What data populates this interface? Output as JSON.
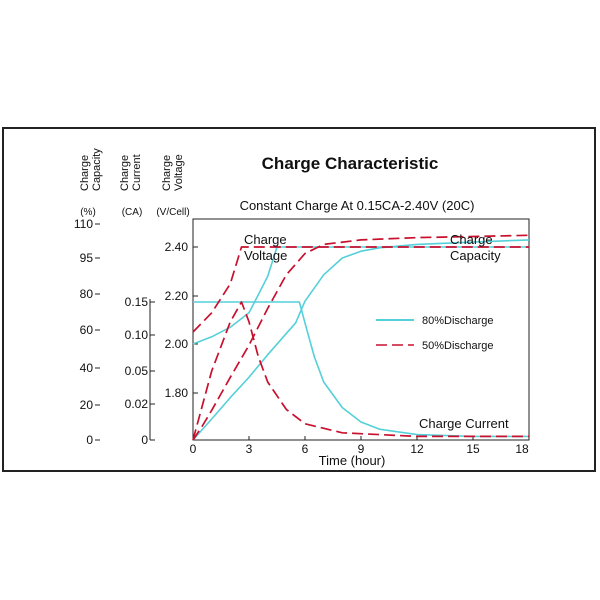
{
  "chart_data": {
    "type": "line",
    "title": "Charge Characteristic",
    "subtitle": "Constant Charge At 0.15CA-2.40V  (20C)",
    "xlabel": "Time (hour)",
    "x_ticks": [
      "0",
      "3",
      "6",
      "9",
      "12",
      "15",
      "18"
    ],
    "xlim": [
      0,
      18
    ],
    "axes": [
      {
        "name": "capacity",
        "label_lines": [
          "Charge",
          "Capacity"
        ],
        "unit": "(%)",
        "ticks": [
          "110",
          "95",
          "80",
          "60",
          "40",
          "20",
          "0"
        ]
      },
      {
        "name": "current",
        "label_lines": [
          "Charge",
          "Current"
        ],
        "unit": "(CA)",
        "ticks": [
          "0.15",
          "0.10",
          "0.05",
          "0.02",
          "0"
        ]
      },
      {
        "name": "voltage",
        "label_lines": [
          "Charge",
          "Voltage"
        ],
        "unit": "(V/Cell)",
        "ticks": [
          "2.40",
          "2.20",
          "2.00",
          "1.80"
        ]
      }
    ],
    "annotations": [
      {
        "lines": [
          "Charge",
          "Voltage"
        ]
      },
      {
        "lines": [
          "Charge",
          "Capacity"
        ]
      },
      {
        "lines": [
          "Charge Current"
        ]
      }
    ],
    "legend": [
      {
        "label": "80%Discharge",
        "color": "#55d0d8",
        "style": "solid"
      },
      {
        "label": "50%Discharge",
        "color": "#c8102e",
        "style": "dashed"
      }
    ],
    "series": [
      {
        "name": "80%Discharge",
        "quantity": "voltage",
        "axis": "voltage",
        "points": [
          [
            0,
            2.0
          ],
          [
            1,
            2.03
          ],
          [
            2,
            2.07
          ],
          [
            3,
            2.13
          ],
          [
            4,
            2.28
          ],
          [
            4.5,
            2.4
          ],
          [
            18,
            2.4
          ]
        ]
      },
      {
        "name": "80%Discharge",
        "quantity": "capacity",
        "axis": "capacity",
        "points": [
          [
            0,
            0
          ],
          [
            1,
            12
          ],
          [
            2,
            24
          ],
          [
            3,
            35
          ],
          [
            4,
            47
          ],
          [
            5.5,
            64
          ],
          [
            6,
            76
          ],
          [
            7,
            88
          ],
          [
            8,
            95
          ],
          [
            9,
            98
          ],
          [
            10,
            99.5
          ],
          [
            12,
            101
          ],
          [
            15,
            102
          ],
          [
            18,
            103
          ]
        ]
      },
      {
        "name": "80%Discharge",
        "quantity": "current",
        "axis": "current",
        "points": [
          [
            0,
            0.15
          ],
          [
            5.7,
            0.15
          ],
          [
            6,
            0.118
          ],
          [
            6.5,
            0.07
          ],
          [
            7,
            0.04
          ],
          [
            8,
            0.018
          ],
          [
            9,
            0.01
          ],
          [
            10,
            0.006
          ],
          [
            12,
            0.003
          ],
          [
            15,
            0.002
          ],
          [
            18,
            0.002
          ]
        ]
      },
      {
        "name": "50%Discharge",
        "quantity": "voltage",
        "axis": "voltage",
        "points": [
          [
            0,
            2.05
          ],
          [
            1,
            2.13
          ],
          [
            2,
            2.25
          ],
          [
            2.6,
            2.4
          ],
          [
            18,
            2.4
          ]
        ]
      },
      {
        "name": "50%Discharge",
        "quantity": "capacity",
        "axis": "capacity",
        "points": [
          [
            0,
            0
          ],
          [
            0.5,
            8
          ],
          [
            1,
            17
          ],
          [
            2,
            35
          ],
          [
            3,
            52
          ],
          [
            4,
            72
          ],
          [
            5,
            88
          ],
          [
            6,
            97
          ],
          [
            7,
            101
          ],
          [
            9,
            103
          ],
          [
            12,
            104
          ],
          [
            15,
            104.5
          ],
          [
            18,
            105
          ]
        ]
      },
      {
        "name": "50%Discharge",
        "quantity": "current",
        "axis": "current",
        "points": [
          [
            0,
            0
          ],
          [
            1,
            0.05
          ],
          [
            2,
            0.12
          ],
          [
            2.6,
            0.15
          ],
          [
            3,
            0.12
          ],
          [
            3.5,
            0.07
          ],
          [
            4,
            0.04
          ],
          [
            5,
            0.017
          ],
          [
            6,
            0.009
          ],
          [
            8,
            0.004
          ],
          [
            10,
            0.003
          ],
          [
            12,
            0.002
          ],
          [
            18,
            0.002
          ]
        ]
      }
    ]
  }
}
